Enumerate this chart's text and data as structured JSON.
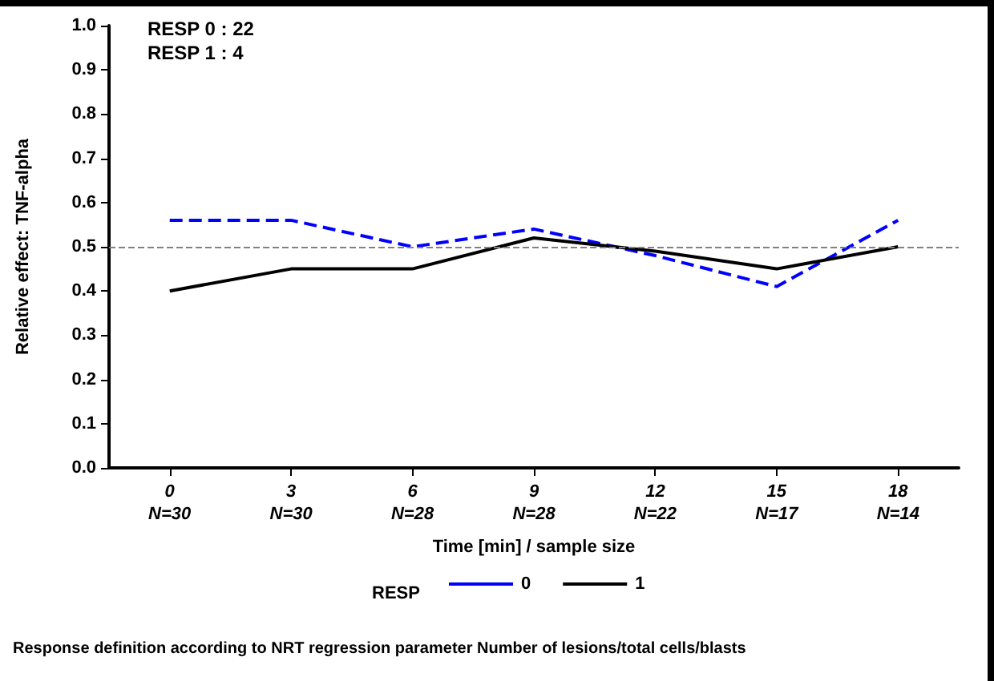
{
  "chart_data": {
    "type": "line",
    "xlabel": "Time [min] / sample size",
    "ylabel": "Relative effect: TNF-alpha",
    "categories": [
      "0\nN=30",
      "3\nN=30",
      "6\nN=28",
      "9\nN=28",
      "12\nN=22",
      "15\nN=17",
      "18\nN=14"
    ],
    "series": [
      {
        "name": "0",
        "color": "#0000ff",
        "line_style": "dashed",
        "values": [
          0.56,
          0.56,
          0.5,
          0.54,
          0.48,
          0.41,
          0.56
        ]
      },
      {
        "name": "1",
        "color": "#000000",
        "line_style": "solid",
        "values": [
          0.4,
          0.45,
          0.45,
          0.52,
          0.49,
          0.45,
          0.5
        ]
      }
    ],
    "ylim": [
      0,
      1
    ],
    "yticks": [
      {
        "value": 0,
        "label": "0.0"
      },
      {
        "value": 0.1,
        "label": "0.1"
      },
      {
        "value": 0.2,
        "label": "0.2"
      },
      {
        "value": 0.3,
        "label": "0.3"
      },
      {
        "value": 0.4,
        "label": "0.4"
      },
      {
        "value": 0.5,
        "label": "0.5"
      },
      {
        "value": 0.6,
        "label": "0.6"
      },
      {
        "value": 0.7,
        "label": "0.7"
      },
      {
        "value": 0.8,
        "label": "0.8"
      },
      {
        "value": 0.9,
        "label": "0.9"
      },
      {
        "value": 1,
        "label": "1.0"
      }
    ],
    "ref_lines": [
      {
        "axis": "y",
        "value": 0.5,
        "color": "#808080",
        "line_style": "dashed"
      }
    ],
    "legend": "bottom",
    "legend_title": "RESP",
    "marker": "none",
    "grid": false,
    "annotations": [
      "RESP 0 : 22",
      "RESP 1 : 4",
      "Response definition according to NRT regression parameter Number of lesions/total cells/blasts"
    ]
  }
}
